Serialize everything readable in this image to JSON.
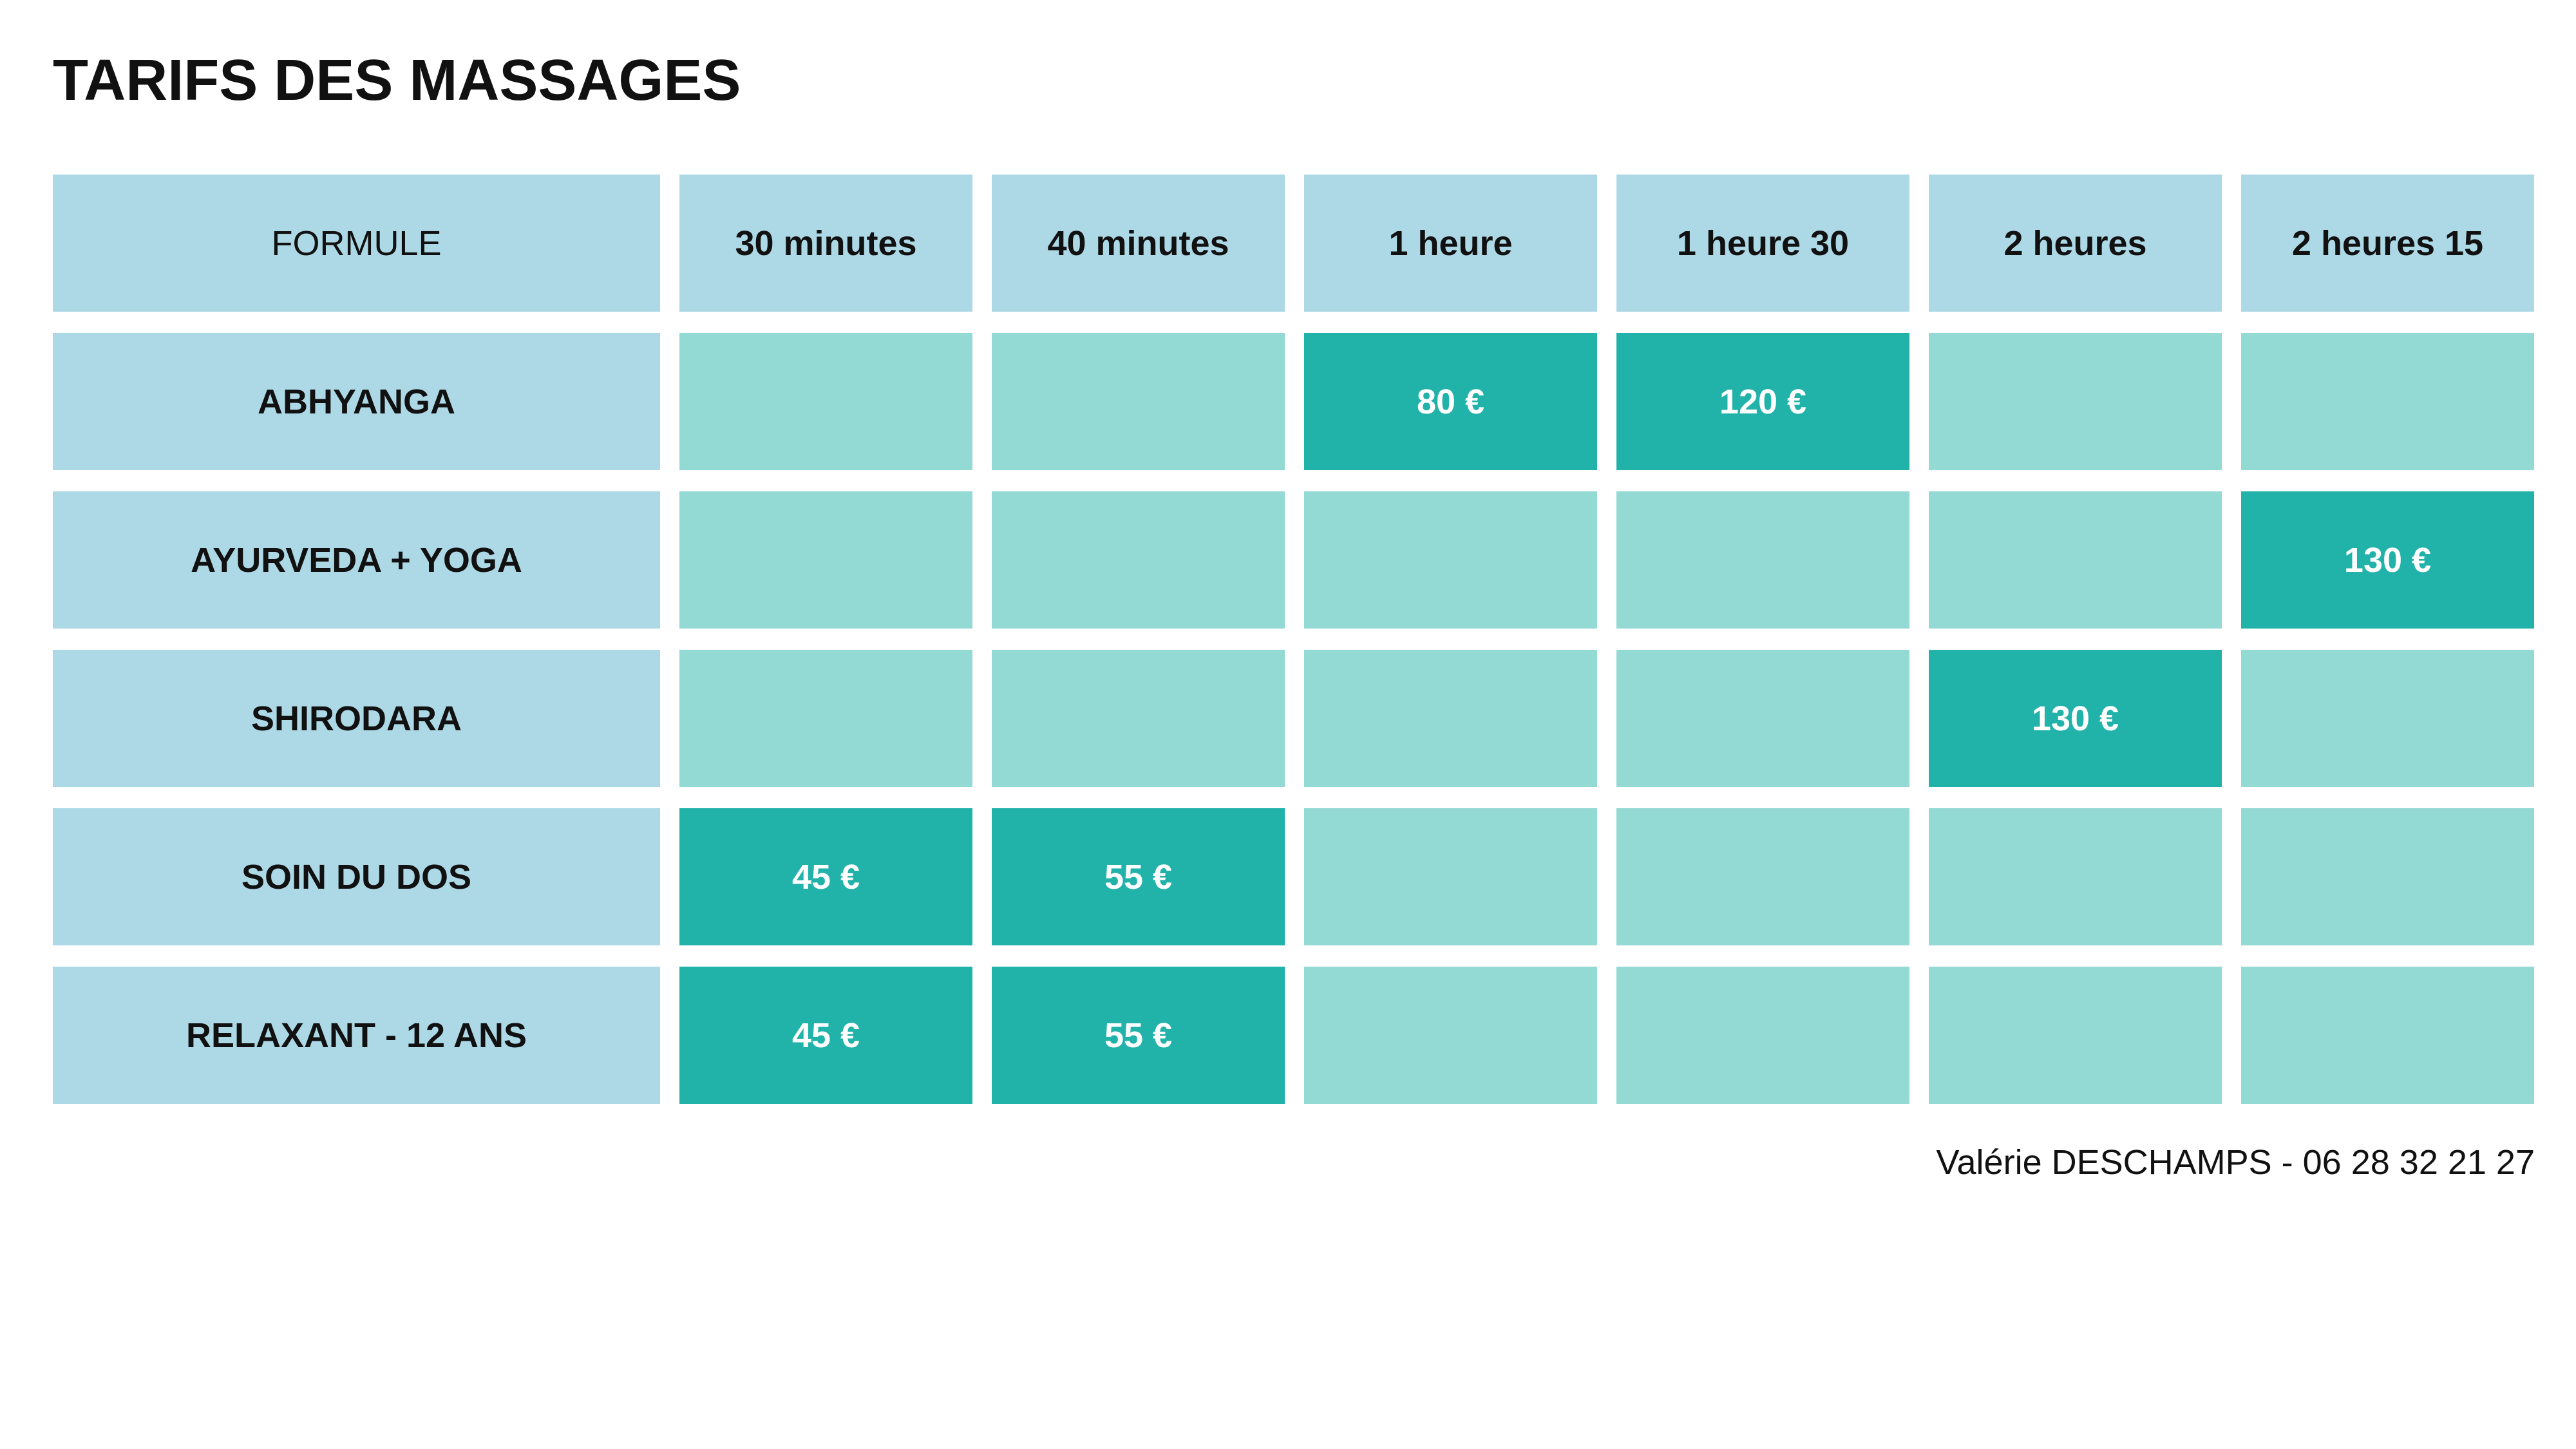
{
  "title": "TARIFS DES MASSAGES",
  "table": {
    "corner_label": "FORMULE",
    "durations": [
      "30 minutes",
      "40 minutes",
      "1 heure",
      "1 heure 30",
      "2 heures",
      "2 heures 15"
    ],
    "rows": [
      {
        "label": "ABHYANGA",
        "prices": [
          "",
          "",
          "80 €",
          "120 €",
          "",
          ""
        ]
      },
      {
        "label": "AYURVEDA + YOGA",
        "prices": [
          "",
          "",
          "",
          "",
          "",
          "130 €"
        ]
      },
      {
        "label": "SHIRODARA",
        "prices": [
          "",
          "",
          "",
          "",
          "130 €",
          ""
        ]
      },
      {
        "label": "SOIN DU DOS",
        "prices": [
          "45 €",
          "55 €",
          "",
          "",
          "",
          ""
        ]
      },
      {
        "label": "RELAXANT - 12 ANS",
        "prices": [
          "45 €",
          "55 €",
          "",
          "",
          "",
          ""
        ]
      }
    ]
  },
  "footer": {
    "contact": "Valérie DESCHAMPS - 06 28 32 21 27"
  },
  "colors": {
    "header_bg": "#add8e6",
    "empty_cell_bg": "#93d9d4",
    "price_cell_bg": "#21b2aa",
    "price_text": "#ffffff"
  }
}
